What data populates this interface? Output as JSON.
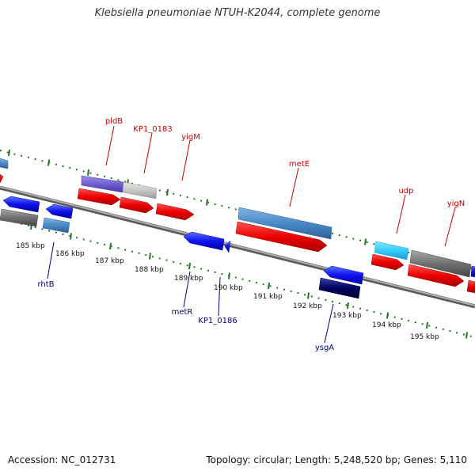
{
  "title": "Klebsiella pneumoniae NTUH-K2044, complete genome",
  "footer": {
    "accession": "Accession: NC_012731",
    "summary": "Topology: circular; Length: 5,248,520 bp; Genes: 5,110"
  },
  "colors": {
    "forward_label": "#cc0000",
    "reverse_label": "#000080",
    "tick": "#227722",
    "backbone": "#808080"
  },
  "ticks": [
    {
      "label": "185 kbp"
    },
    {
      "label": "186 kbp"
    },
    {
      "label": "187 kbp"
    },
    {
      "label": "188 kbp"
    },
    {
      "label": "189 kbp"
    },
    {
      "label": "190 kbp"
    },
    {
      "label": "191 kbp"
    },
    {
      "label": "192 kbp"
    },
    {
      "label": "193 kbp"
    },
    {
      "label": "194 kbp"
    },
    {
      "label": "195 kbp"
    }
  ],
  "gene_labels": {
    "forward": [
      "pldB",
      "KP1_0183",
      "yigM",
      "metE",
      "udp",
      "yigN"
    ],
    "reverse": [
      "rhtB",
      "metR",
      "KP1_0186",
      "ysgA"
    ]
  },
  "features": [
    {
      "strand": "forward",
      "row": "outer",
      "color": "#4a8ac8"
    },
    {
      "strand": "forward",
      "row": "outer",
      "color": "#7060d0"
    },
    {
      "strand": "forward",
      "row": "outer",
      "color": "#c8c8c8"
    },
    {
      "strand": "forward",
      "row": "outer",
      "color": "#4a8ac8"
    },
    {
      "strand": "forward",
      "row": "outer",
      "color": "#33ccff"
    },
    {
      "strand": "forward",
      "row": "outer",
      "color": "#707070"
    },
    {
      "strand": "forward",
      "row": "inner",
      "color": "#ee0000"
    },
    {
      "strand": "reverse",
      "row": "inner",
      "color": "#1111ee"
    },
    {
      "strand": "reverse",
      "row": "outer",
      "color": "#707070"
    },
    {
      "strand": "reverse",
      "row": "outer",
      "color": "#4a8ac8"
    },
    {
      "strand": "reverse",
      "row": "outer",
      "color": "#000060"
    }
  ]
}
